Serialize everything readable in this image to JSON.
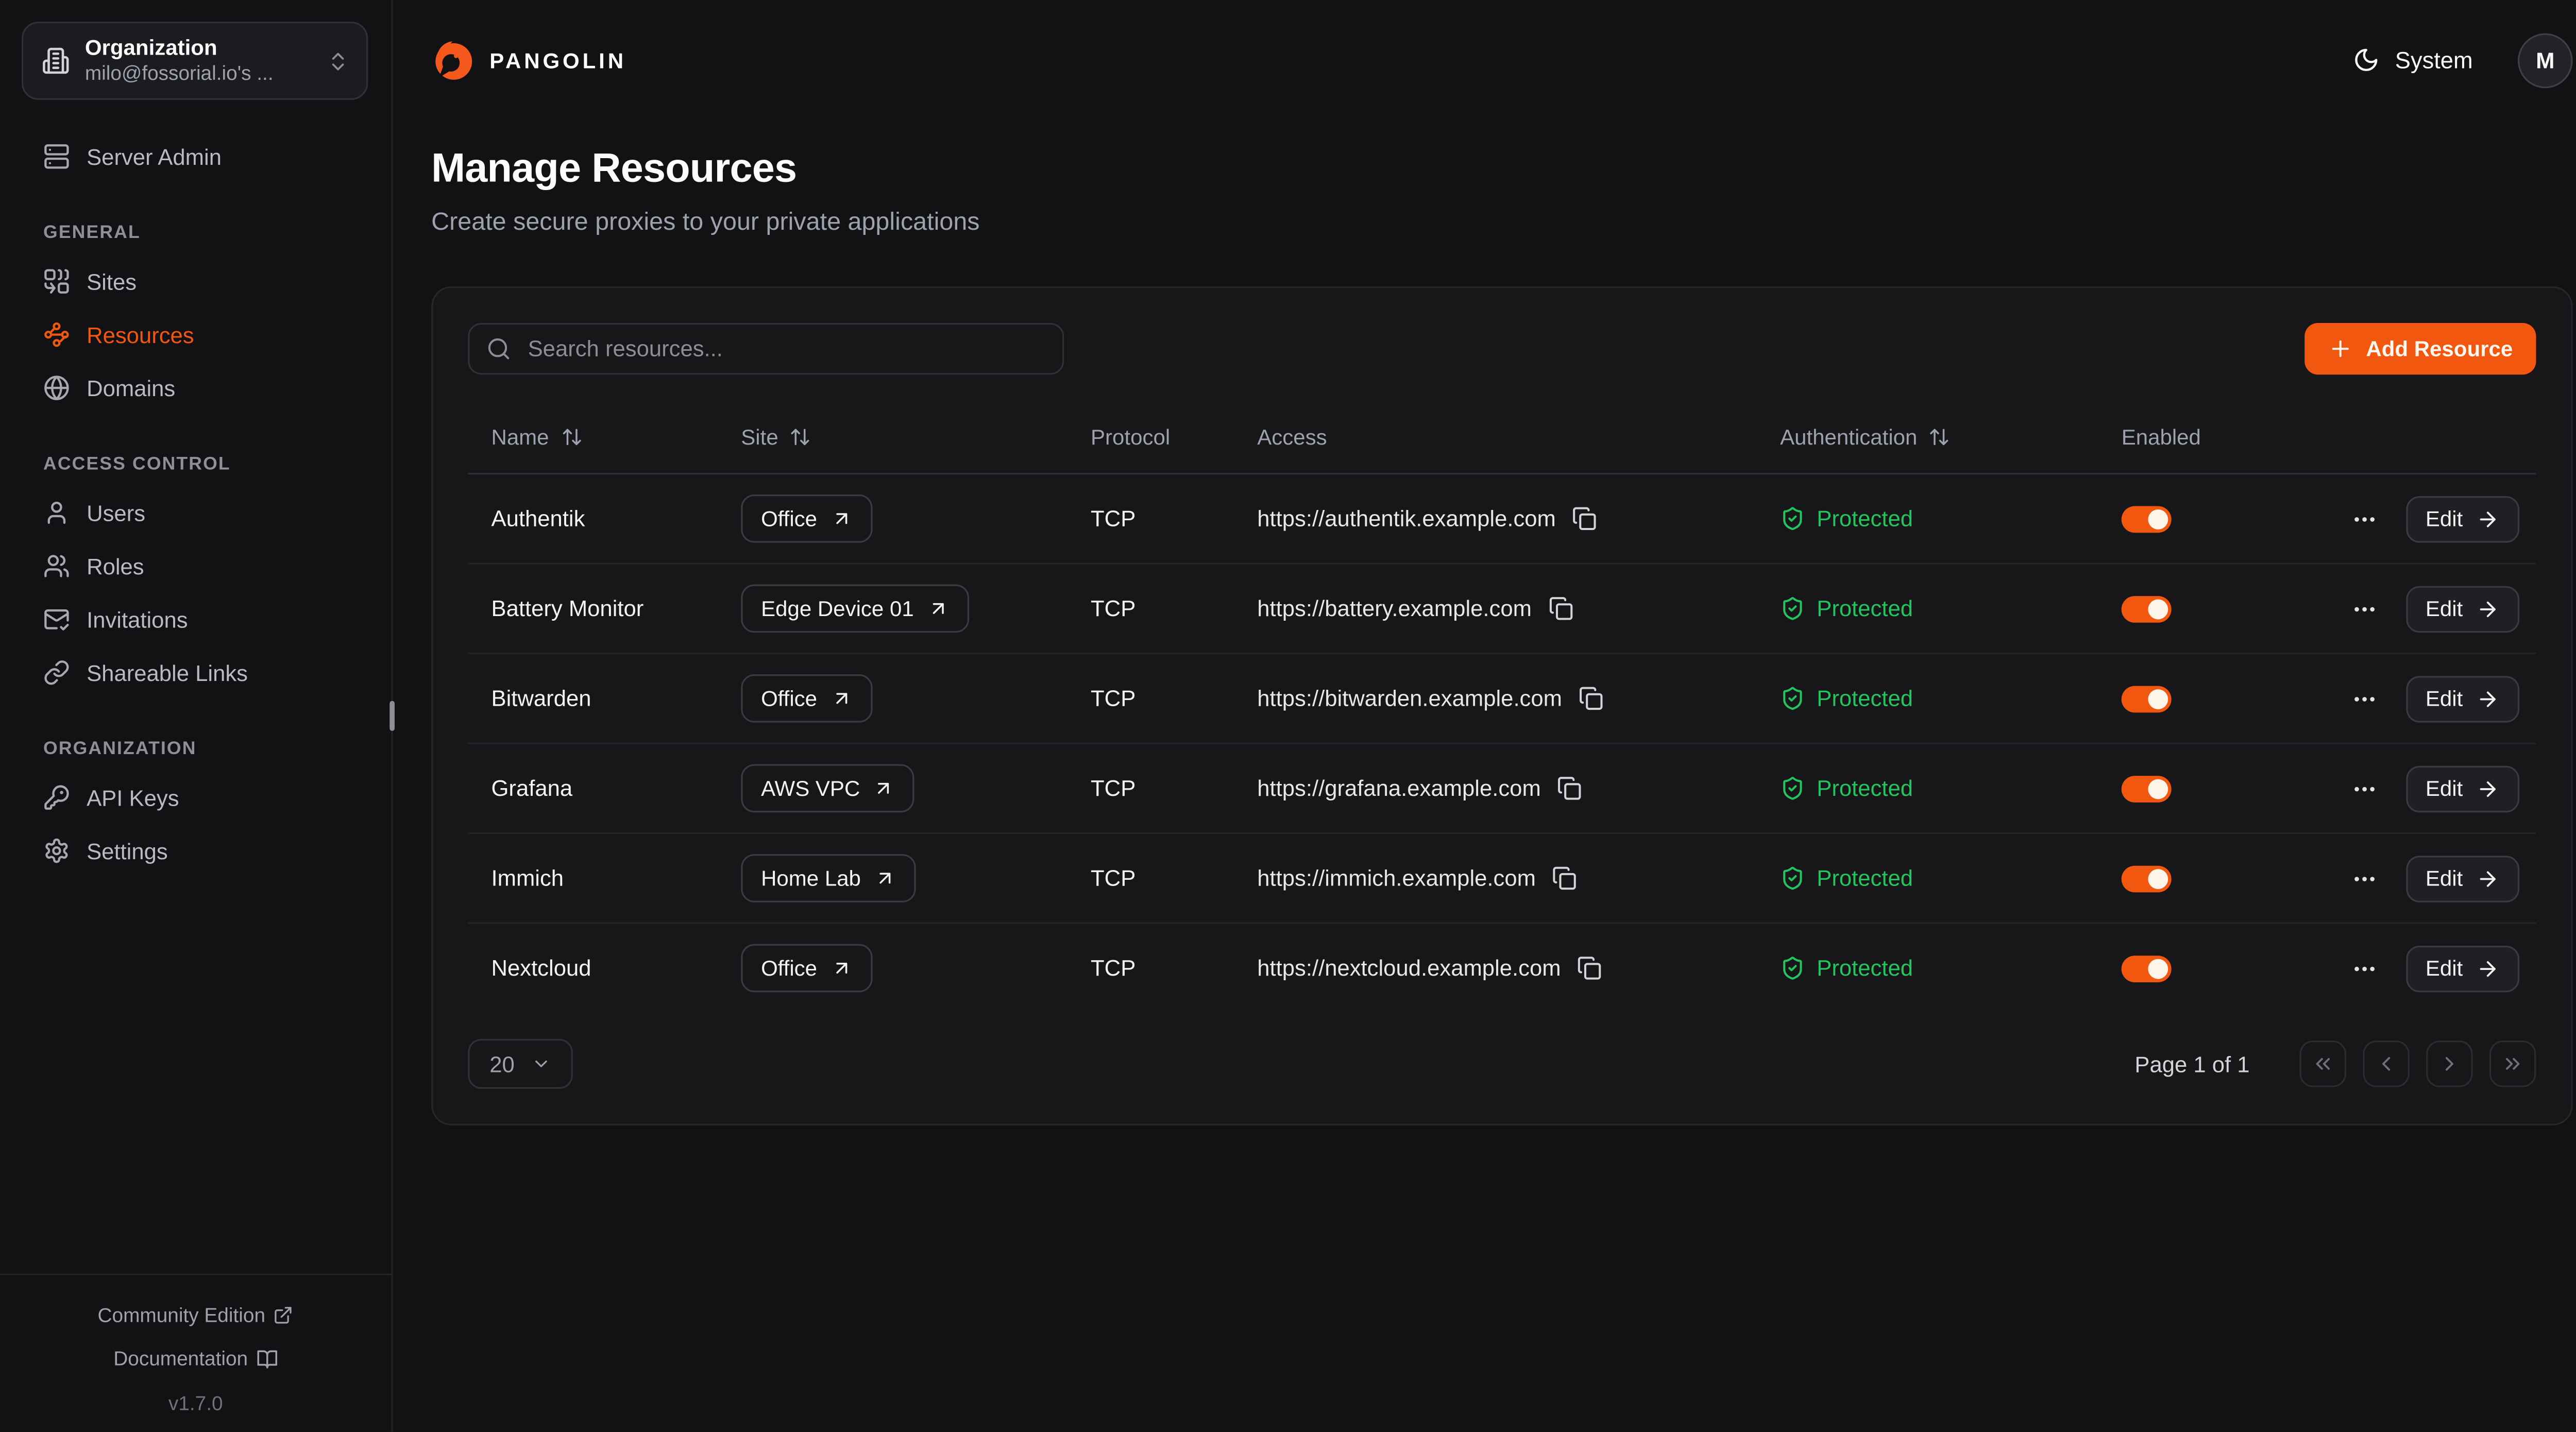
{
  "brand": {
    "name": "PANGOLIN",
    "accent_color": "#f1570f"
  },
  "org_switcher": {
    "label": "Organization",
    "value": "milo@fossorial.io's ..."
  },
  "sidebar": {
    "server_admin": {
      "label": "Server Admin",
      "icon": "server"
    },
    "sections": [
      {
        "label": "GENERAL",
        "items": [
          {
            "label": "Sites",
            "icon": "sites",
            "active": false
          },
          {
            "label": "Resources",
            "icon": "resources",
            "active": true
          },
          {
            "label": "Domains",
            "icon": "globe",
            "active": false
          }
        ]
      },
      {
        "label": "ACCESS CONTROL",
        "items": [
          {
            "label": "Users",
            "icon": "user",
            "active": false
          },
          {
            "label": "Roles",
            "icon": "users",
            "active": false
          },
          {
            "label": "Invitations",
            "icon": "mail-check",
            "active": false
          },
          {
            "label": "Shareable Links",
            "icon": "link",
            "active": false
          }
        ]
      },
      {
        "label": "ORGANIZATION",
        "items": [
          {
            "label": "API Keys",
            "icon": "key",
            "active": false
          },
          {
            "label": "Settings",
            "icon": "settings",
            "active": false
          }
        ]
      }
    ],
    "footer": {
      "community_link": "Community Edition",
      "docs_link": "Documentation",
      "version": "v1.7.0"
    }
  },
  "header": {
    "theme_label": "System",
    "avatar_initial": "M"
  },
  "page": {
    "title": "Manage Resources",
    "subtitle": "Create secure proxies to your private applications"
  },
  "toolbar": {
    "search_placeholder": "Search resources...",
    "add_button_label": "Add Resource"
  },
  "table": {
    "columns": [
      {
        "label": "Name",
        "sortable": true
      },
      {
        "label": "Site",
        "sortable": true
      },
      {
        "label": "Protocol",
        "sortable": false
      },
      {
        "label": "Access",
        "sortable": false
      },
      {
        "label": "Authentication",
        "sortable": true
      },
      {
        "label": "Enabled",
        "sortable": false
      }
    ],
    "edit_label": "Edit",
    "auth_protected_label": "Protected",
    "auth_color": "#22c55e",
    "rows": [
      {
        "name": "Authentik",
        "site": "Office",
        "protocol": "TCP",
        "access": "https://authentik.example.com",
        "auth": "Protected",
        "enabled": true
      },
      {
        "name": "Battery Monitor",
        "site": "Edge Device 01",
        "protocol": "TCP",
        "access": "https://battery.example.com",
        "auth": "Protected",
        "enabled": true
      },
      {
        "name": "Bitwarden",
        "site": "Office",
        "protocol": "TCP",
        "access": "https://bitwarden.example.com",
        "auth": "Protected",
        "enabled": true
      },
      {
        "name": "Grafana",
        "site": "AWS VPC",
        "protocol": "TCP",
        "access": "https://grafana.example.com",
        "auth": "Protected",
        "enabled": true
      },
      {
        "name": "Immich",
        "site": "Home Lab",
        "protocol": "TCP",
        "access": "https://immich.example.com",
        "auth": "Protected",
        "enabled": true
      },
      {
        "name": "Nextcloud",
        "site": "Office",
        "protocol": "TCP",
        "access": "https://nextcloud.example.com",
        "auth": "Protected",
        "enabled": true
      }
    ]
  },
  "pagination": {
    "page_size": "20",
    "status": "Page 1 of 1",
    "buttons": [
      {
        "name": "first-page",
        "icon": "chevrons-left"
      },
      {
        "name": "prev-page",
        "icon": "chevron-left"
      },
      {
        "name": "next-page",
        "icon": "chevron-right"
      },
      {
        "name": "last-page",
        "icon": "chevrons-right"
      }
    ]
  }
}
